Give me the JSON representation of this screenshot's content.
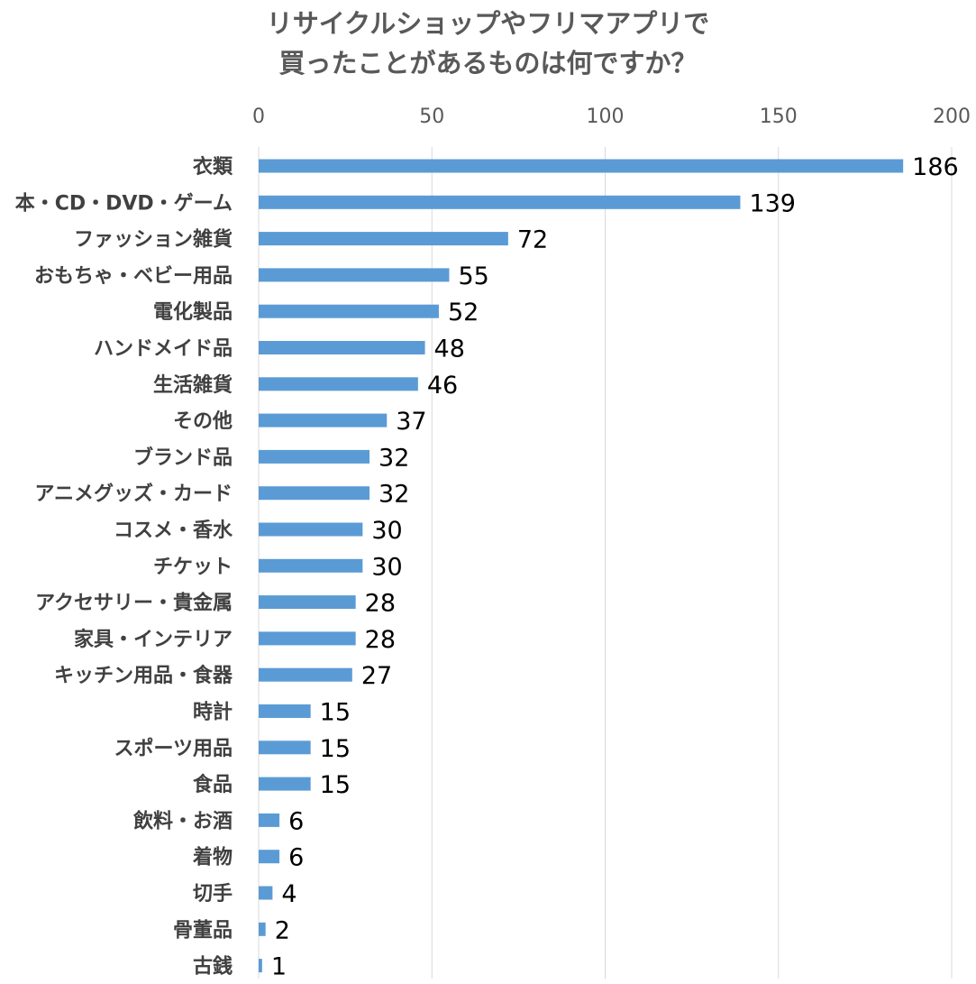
{
  "chart_data": {
    "type": "bar",
    "orientation": "horizontal",
    "title_lines": [
      "リサイクルショップやフリマアプリで",
      "買ったことがあるものは何ですか？"
    ],
    "xlim": [
      0,
      200
    ],
    "xticks": [
      0,
      50,
      100,
      150,
      200
    ],
    "xtick_labels": [
      "0",
      "50",
      "100",
      "150",
      "200"
    ],
    "axis_position": "top",
    "grid": true,
    "bar_color": "#5B9BD5",
    "grid_color": "#D9D9D9",
    "categories": [
      "衣類",
      "本・CD・DVD・ゲーム",
      "ファッション雑貨",
      "おもちゃ・ベビー用品",
      "電化製品",
      "ハンドメイド品",
      "生活雑貨",
      "その他",
      "ブランド品",
      "アニメグッズ・カード",
      "コスメ・香水",
      "チケット",
      "アクセサリー・貴金属",
      "家具・インテリア",
      "キッチン用品・食器",
      "時計",
      "スポーツ用品",
      "食品",
      "飲料・お酒",
      "着物",
      "切手",
      "骨董品",
      "古銭"
    ],
    "values": [
      186,
      139,
      72,
      55,
      52,
      48,
      46,
      37,
      32,
      32,
      30,
      30,
      28,
      28,
      27,
      15,
      15,
      15,
      6,
      6,
      4,
      2,
      1
    ],
    "value_labels": [
      "186",
      "139",
      "72",
      "55",
      "52",
      "48",
      "46",
      "37",
      "32",
      "32",
      "30",
      "30",
      "28",
      "28",
      "27",
      "15",
      "15",
      "15",
      "6",
      "6",
      "4",
      "2",
      "1"
    ]
  }
}
